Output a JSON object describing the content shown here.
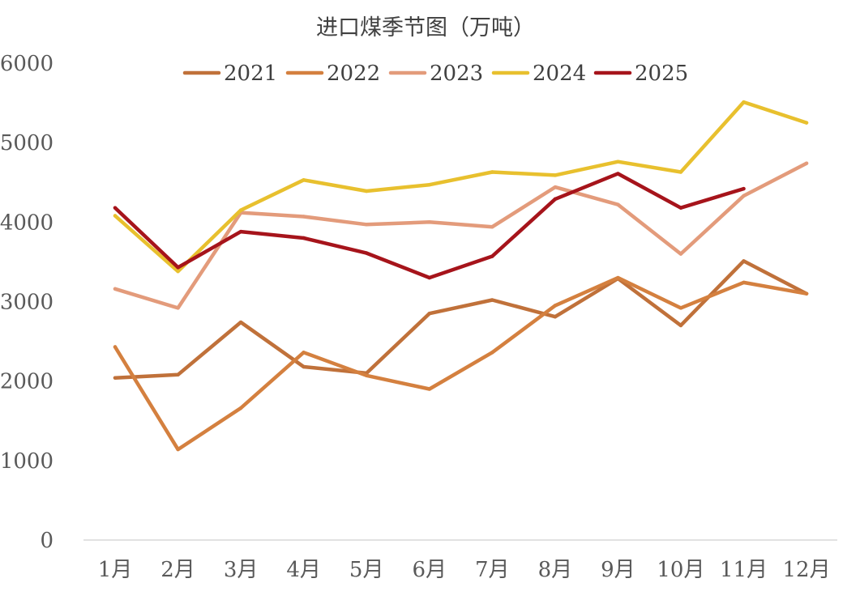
{
  "chart_data": {
    "type": "line",
    "title": "进口煤季节图（万吨）",
    "xlabel": "",
    "ylabel": "",
    "categories": [
      "1月",
      "2月",
      "3月",
      "4月",
      "5月",
      "6月",
      "7月",
      "8月",
      "9月",
      "10月",
      "11月",
      "12月"
    ],
    "ylim": [
      0,
      6000
    ],
    "yticks": [
      0,
      1000,
      2000,
      3000,
      4000,
      5000,
      6000
    ],
    "grid": false,
    "legend_position": "top",
    "series": [
      {
        "name": "2021",
        "color": "#C0713A",
        "values": [
          2040,
          2080,
          2740,
          2180,
          2100,
          2850,
          3020,
          2810,
          3290,
          2700,
          3510,
          3100
        ]
      },
      {
        "name": "2022",
        "color": "#D4803F",
        "values": [
          2430,
          1140,
          1660,
          2360,
          2070,
          1900,
          2360,
          2950,
          3300,
          2920,
          3240,
          3100
        ]
      },
      {
        "name": "2023",
        "color": "#E39B7B",
        "values": [
          3160,
          2920,
          4120,
          4070,
          3970,
          4000,
          3940,
          4440,
          4220,
          3600,
          4330,
          4740
        ]
      },
      {
        "name": "2024",
        "color": "#E8C02E",
        "values": [
          4080,
          3380,
          4150,
          4530,
          4390,
          4470,
          4630,
          4590,
          4760,
          4630,
          5510,
          5250
        ]
      },
      {
        "name": "2025",
        "color": "#A6141B",
        "values": [
          4180,
          3430,
          3880,
          3800,
          3610,
          3300,
          3570,
          4290,
          4610,
          4180,
          4420,
          null
        ]
      }
    ]
  }
}
